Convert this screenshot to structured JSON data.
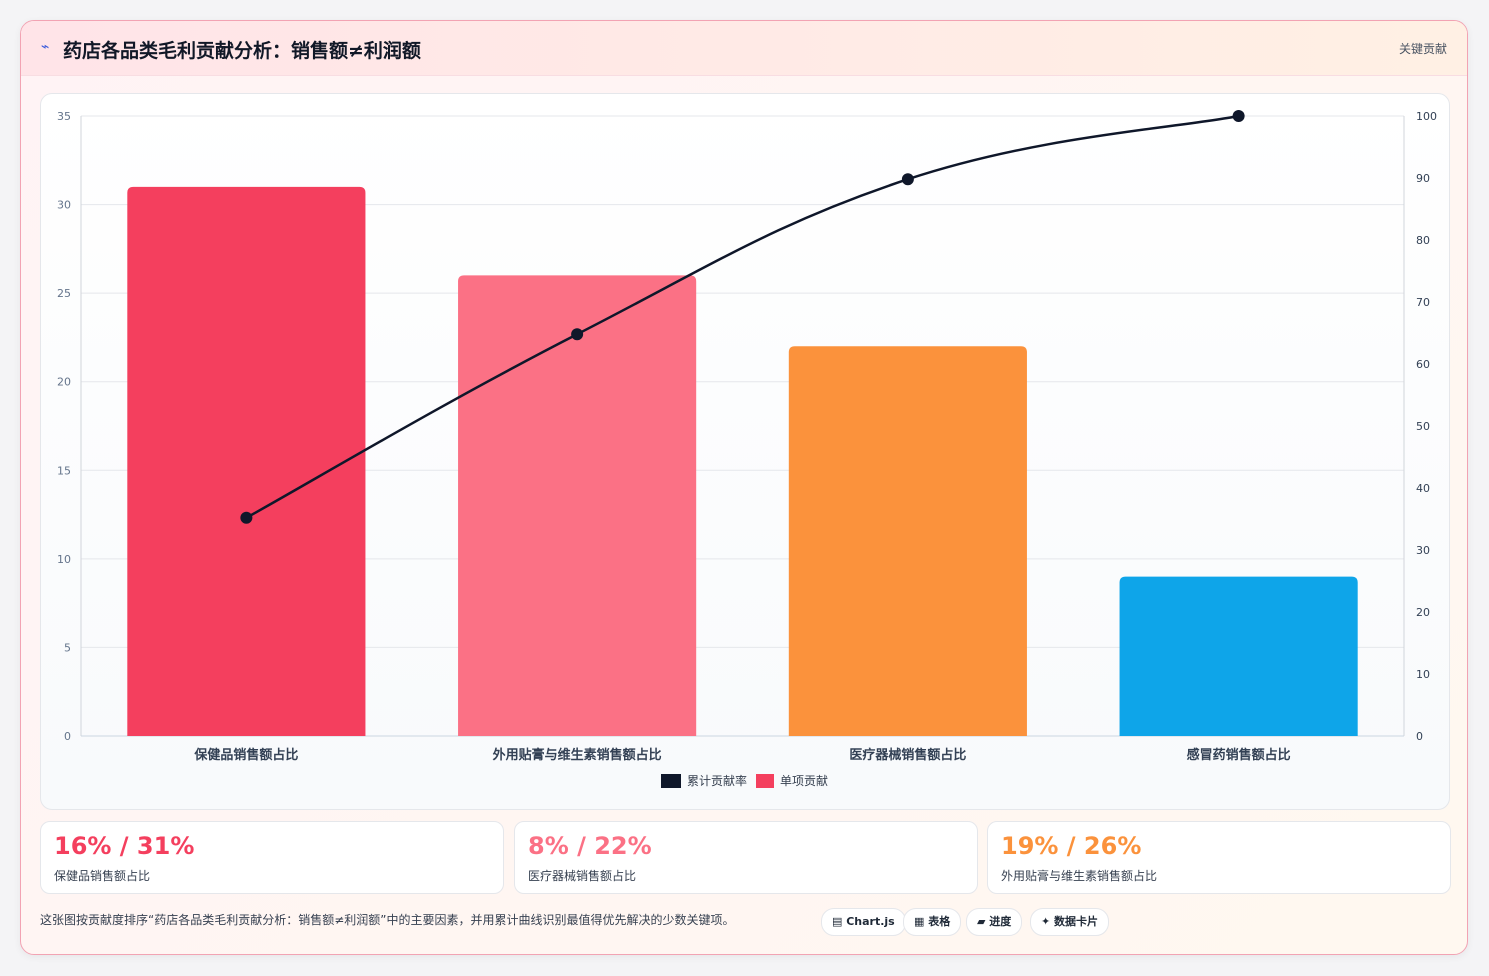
{
  "header": {
    "icon": "trend-icon",
    "title": "药店各品类毛利贡献分析：销售额≠利润额",
    "tag": "关键贡献"
  },
  "colors": {
    "bar1": "#f43f5e",
    "bar2": "#fb7185",
    "bar3": "#fb923c",
    "bar4": "#0ea5e9",
    "line": "#0f172a"
  },
  "chart_data": {
    "type": "bar",
    "categories": [
      "保健品销售额占比",
      "外用贴膏与维生素销售额占比",
      "医疗器械销售额占比",
      "感冒药销售额占比"
    ],
    "series": [
      {
        "name": "单项贡献",
        "type": "bar",
        "axis": "left",
        "values": [
          31,
          26,
          22,
          9
        ]
      },
      {
        "name": "累计贡献率",
        "type": "line",
        "axis": "right",
        "values": [
          35.2,
          64.8,
          89.8,
          100
        ]
      }
    ],
    "y_left": {
      "min": 0,
      "max": 35,
      "ticks": [
        0,
        5,
        10,
        15,
        20,
        25,
        30,
        35
      ]
    },
    "y_right": {
      "min": 0,
      "max": 100,
      "ticks": [
        0,
        10,
        20,
        30,
        40,
        50,
        60,
        70,
        80,
        90,
        100
      ]
    },
    "grid": true,
    "legend_position": "bottom"
  },
  "stats": [
    {
      "value": "16% / 31%",
      "label": "保健品销售额占比",
      "color": "#f43f5e"
    },
    {
      "value": "8% / 22%",
      "label": "医疗器械销售额占比",
      "color": "#fb7185"
    },
    {
      "value": "19% / 26%",
      "label": "外用贴膏与维生素销售额占比",
      "color": "#fb923c"
    }
  ],
  "footer": {
    "text": "这张图按贡献度排序“药店各品类毛利贡献分析：销售额≠利润额”中的主要因素，并用累计曲线识别最值得优先解决的少数关键项。",
    "chips": [
      "▤ Chart.js",
      "▦ 表格",
      "▰ 进度",
      "✦ 数据卡片"
    ]
  }
}
